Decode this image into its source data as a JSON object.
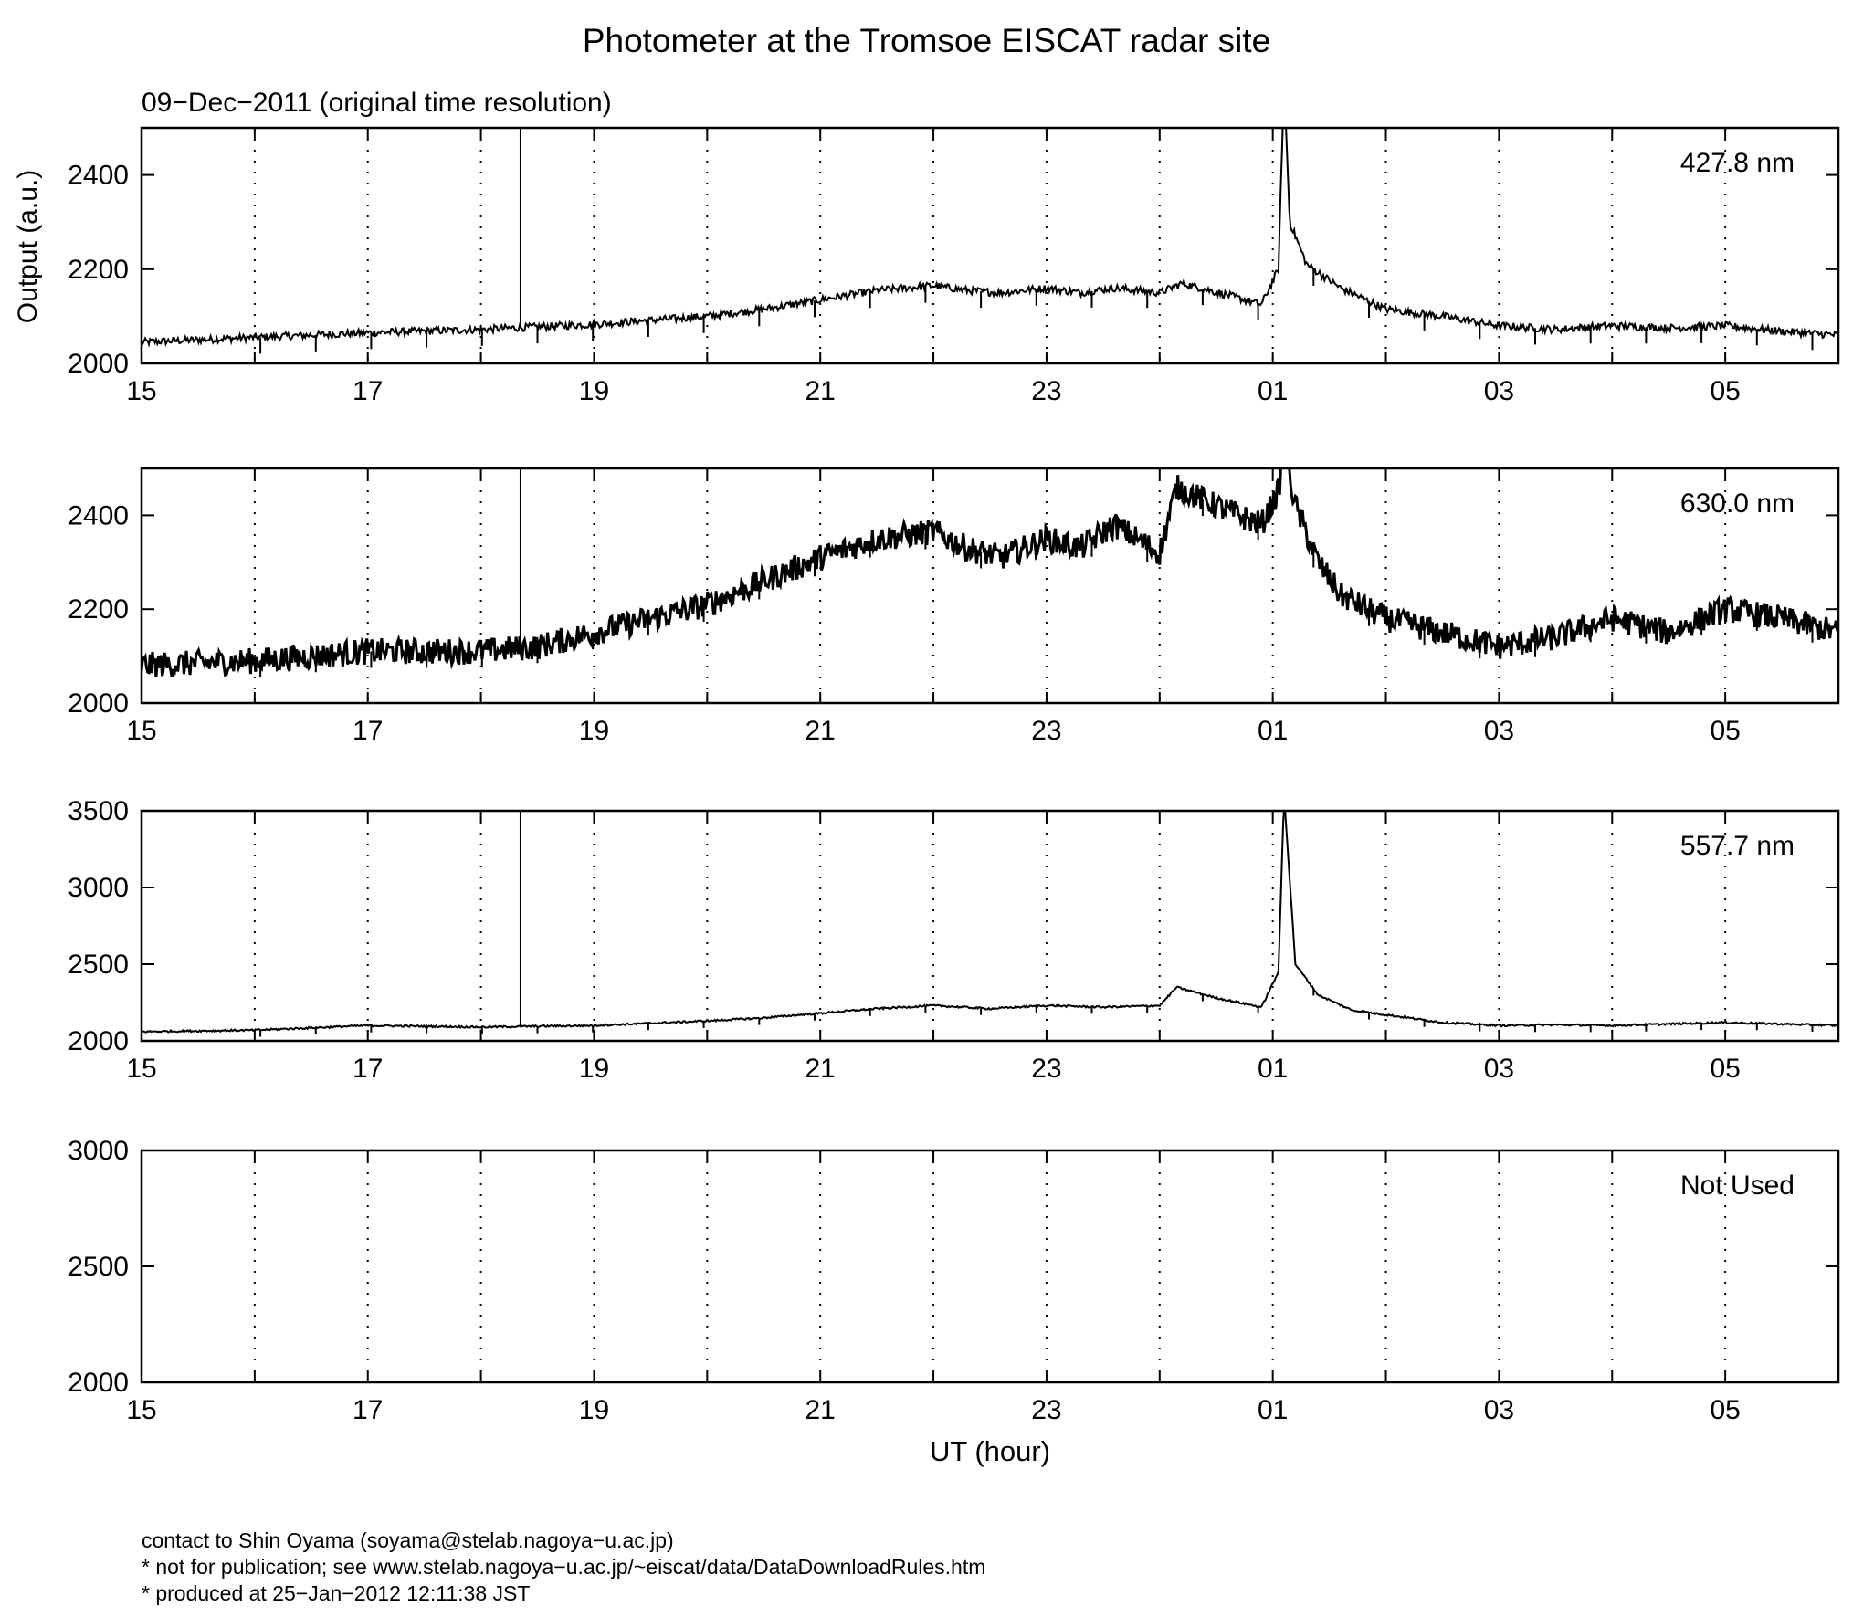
{
  "title": "Photometer at the Tromsoe EISCAT radar site",
  "subtitle": "09−Dec−2011 (original time resolution)",
  "chart_data": {
    "type": "line",
    "ylabel": "Output (a.u.)",
    "xlabel": "UT (hour)",
    "x_ticks": [
      "15",
      "17",
      "19",
      "21",
      "23",
      "01",
      "03",
      "05"
    ],
    "xlim_hours_ut": [
      15,
      30
    ],
    "grid": "vertical dotted lines every hour",
    "panels": [
      {
        "label": "427.8 nm",
        "ylim": [
          2000,
          2500
        ],
        "yticks": [
          "2000",
          "2200",
          "2400"
        ],
        "series": {
          "x": [
            15,
            16,
            17,
            18,
            19,
            20,
            20.5,
            21,
            21.5,
            22,
            22.3,
            22.6,
            23,
            23.3,
            23.6,
            24,
            24.2,
            24.6,
            24.9,
            25.05,
            25.1,
            25.15,
            25.3,
            25.6,
            26,
            26.5,
            27,
            27.5,
            28,
            28.5,
            29,
            29.5,
            30
          ],
          "y": [
            2045,
            2055,
            2065,
            2072,
            2083,
            2100,
            2115,
            2135,
            2155,
            2165,
            2155,
            2150,
            2160,
            2150,
            2160,
            2150,
            2170,
            2145,
            2125,
            2200,
            2600,
            2300,
            2210,
            2160,
            2115,
            2100,
            2080,
            2072,
            2080,
            2075,
            2080,
            2068,
            2060
          ]
        }
      },
      {
        "label": "630.0 nm",
        "ylim": [
          2000,
          2500
        ],
        "yticks": [
          "2000",
          "2200",
          "2400"
        ],
        "series": {
          "x": [
            15,
            16,
            16.5,
            17,
            18,
            18.5,
            19,
            19.5,
            20,
            20.5,
            21,
            21.5,
            22,
            22.3,
            22.6,
            23,
            23.3,
            23.6,
            24,
            24.15,
            24.5,
            24.9,
            25.05,
            25.1,
            25.2,
            25.4,
            25.6,
            26,
            26.5,
            27,
            27.5,
            28,
            28.5,
            29,
            29.5,
            30
          ],
          "y": [
            2080,
            2090,
            2100,
            2110,
            2110,
            2120,
            2150,
            2180,
            2210,
            2260,
            2310,
            2350,
            2365,
            2330,
            2310,
            2350,
            2330,
            2380,
            2320,
            2460,
            2420,
            2380,
            2450,
            2550,
            2420,
            2300,
            2230,
            2180,
            2150,
            2120,
            2140,
            2180,
            2150,
            2200,
            2180,
            2150
          ]
        }
      },
      {
        "label": "557.7 nm",
        "ylim": [
          2000,
          3500
        ],
        "yticks": [
          "2000",
          "2500",
          "3000",
          "3500"
        ],
        "series": {
          "x": [
            15,
            16,
            17,
            18,
            19,
            20,
            20.5,
            21,
            21.5,
            22,
            22.5,
            23,
            23.5,
            24,
            24.15,
            24.5,
            24.9,
            25.05,
            25.1,
            25.2,
            25.4,
            25.7,
            26,
            26.5,
            27,
            27.5,
            28,
            28.5,
            29,
            29.5,
            30
          ],
          "y": [
            2060,
            2070,
            2100,
            2090,
            2100,
            2130,
            2150,
            2180,
            2210,
            2230,
            2210,
            2230,
            2220,
            2230,
            2350,
            2280,
            2220,
            2450,
            3600,
            2500,
            2300,
            2200,
            2170,
            2120,
            2100,
            2105,
            2100,
            2110,
            2120,
            2110,
            2100
          ]
        }
      },
      {
        "label": "Not Used",
        "ylim": [
          2000,
          3000
        ],
        "yticks": [
          "2000",
          "2500",
          "3000"
        ],
        "series": {
          "x": [],
          "y": []
        }
      }
    ]
  },
  "footer": {
    "contact": "contact to Shin Oyama (soyama@stelab.nagoya−u.ac.jp)",
    "notice": "* not for publication; see www.stelab.nagoya−u.ac.jp/~eiscat/data/DataDownloadRules.htm",
    "produced": "* produced at 25−Jan−2012 12:11:38 JST"
  }
}
